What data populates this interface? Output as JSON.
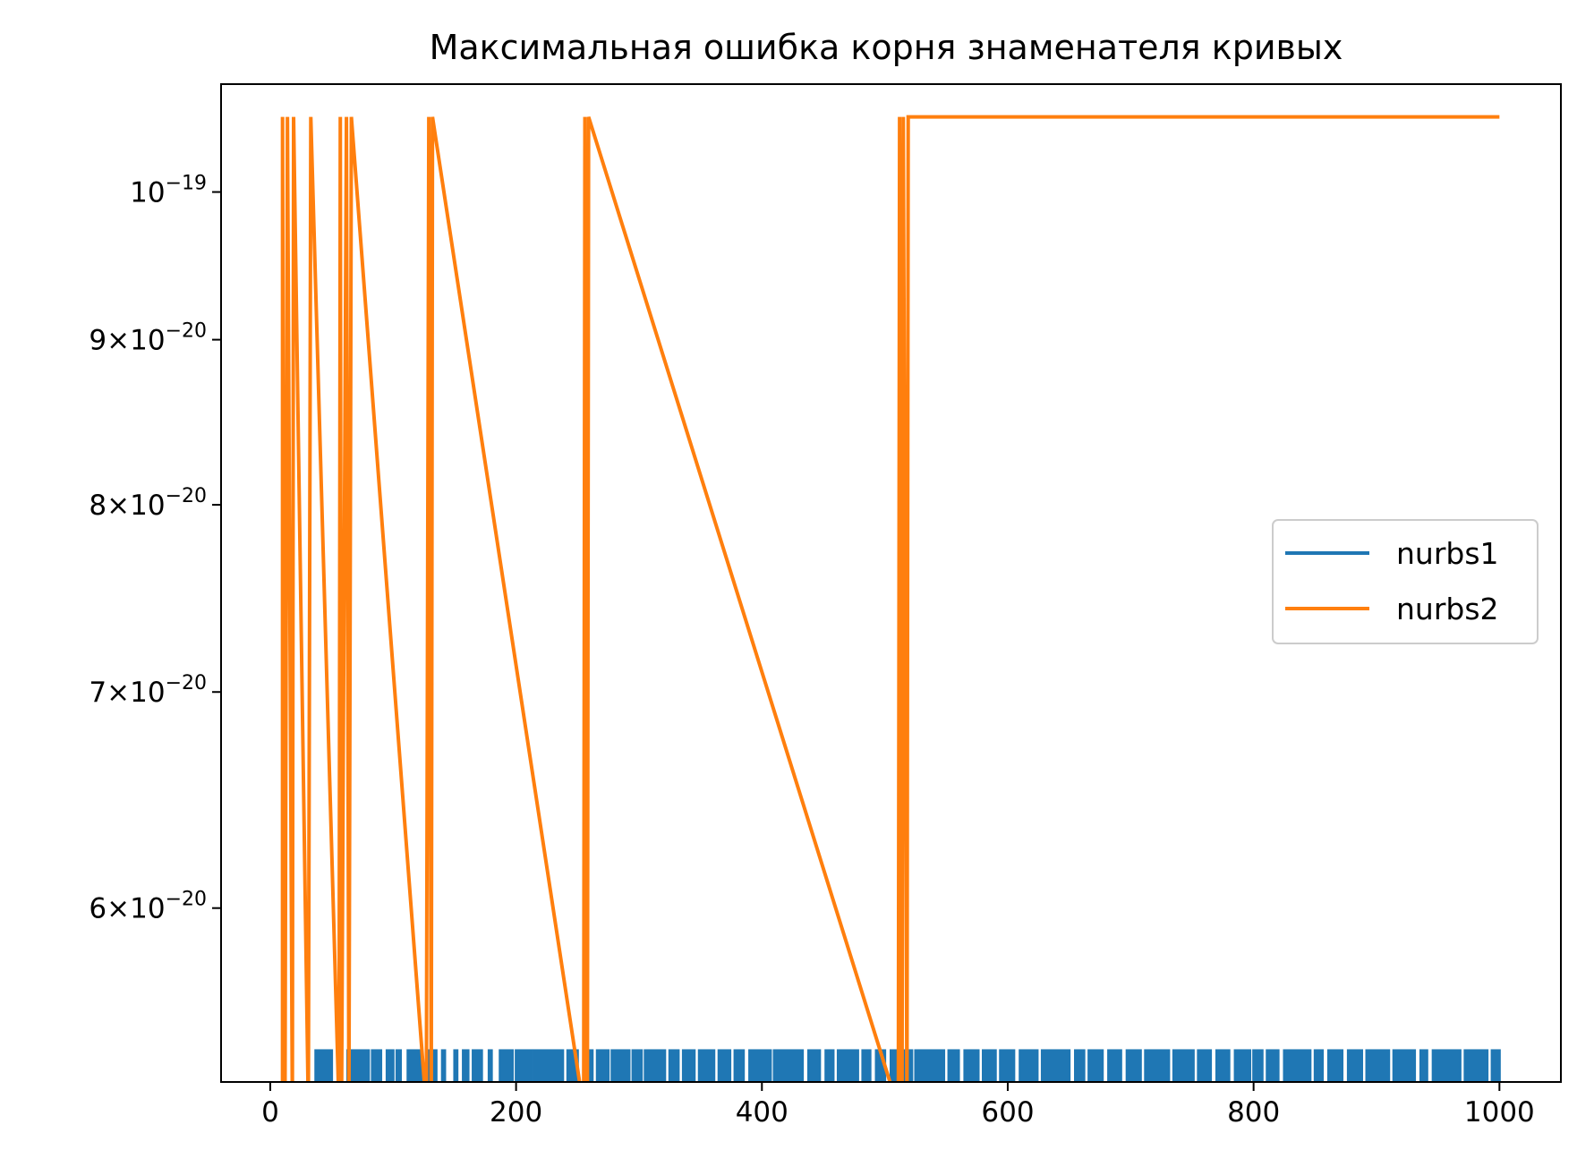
{
  "chart_data": {
    "type": "line",
    "title": "Максимальная ошибка корня знаменателя кривых",
    "xlabel": "",
    "ylabel": "",
    "yscale": "log",
    "xlim": [
      -40,
      1050
    ],
    "ylim": [
      5.3e-20,
      1.08e-19
    ],
    "grid": false,
    "legend_position": "center-right",
    "x_ticks": [
      {
        "value": 0,
        "label": "0"
      },
      {
        "value": 200,
        "label": "200"
      },
      {
        "value": 400,
        "label": "400"
      },
      {
        "value": 600,
        "label": "600"
      },
      {
        "value": 800,
        "label": "800"
      },
      {
        "value": 1000,
        "label": "1000"
      }
    ],
    "y_ticks": [
      {
        "value": 1e-19,
        "mantissa": "",
        "base": "10",
        "exponent": "−19"
      },
      {
        "value": 9e-20,
        "mantissa": "9",
        "base": "10",
        "exponent": "−20"
      },
      {
        "value": 8e-20,
        "mantissa": "8",
        "base": "10",
        "exponent": "−20"
      },
      {
        "value": 7e-20,
        "mantissa": "7",
        "base": "10",
        "exponent": "−20"
      },
      {
        "value": 6e-20,
        "mantissa": "6",
        "base": "10",
        "exponent": "−20"
      }
    ],
    "series": [
      {
        "name": "nurbs1",
        "color": "#1f77b4",
        "x_range": [
          1,
          1000
        ],
        "high_value": 5.42e-20,
        "low_value": 5.2e-20,
        "note_pattern": "rapid switching between low (below axis) and high values",
        "high_intervals": [
          [
            37,
            50
          ],
          [
            55,
            58
          ],
          [
            63,
            80
          ],
          [
            83,
            90
          ],
          [
            95,
            100
          ],
          [
            103,
            106
          ],
          [
            112,
            123
          ],
          [
            127,
            135
          ],
          [
            140,
            142
          ],
          [
            150,
            152
          ],
          [
            157,
            161
          ],
          [
            165,
            172
          ],
          [
            178,
            180
          ],
          [
            187,
            197
          ],
          [
            200,
            213
          ],
          [
            215,
            238
          ],
          [
            242,
            250
          ],
          [
            255,
            262
          ],
          [
            266,
            275
          ],
          [
            278,
            292
          ],
          [
            295,
            302
          ],
          [
            305,
            321
          ],
          [
            325,
            332
          ],
          [
            336,
            345
          ],
          [
            349,
            361
          ],
          [
            365,
            374
          ],
          [
            378,
            385
          ],
          [
            390,
            407
          ],
          [
            410,
            433
          ],
          [
            438,
            447
          ],
          [
            452,
            458
          ],
          [
            462,
            478
          ],
          [
            482,
            488
          ],
          [
            493,
            500
          ],
          [
            505,
            522
          ],
          [
            525,
            548
          ],
          [
            552,
            560
          ],
          [
            565,
            576
          ],
          [
            580,
            590
          ],
          [
            594,
            605
          ],
          [
            610,
            624
          ],
          [
            628,
            650
          ],
          [
            655,
            662
          ],
          [
            666,
            677
          ],
          [
            682,
            692
          ],
          [
            697,
            708
          ],
          [
            712,
            731
          ],
          [
            735,
            751
          ],
          [
            755,
            765
          ],
          [
            770,
            780
          ],
          [
            785,
            797
          ],
          [
            800,
            807
          ],
          [
            811,
            820
          ],
          [
            825,
            846
          ],
          [
            850,
            856
          ],
          [
            861,
            872
          ],
          [
            877,
            888
          ],
          [
            892,
            910
          ],
          [
            914,
            931
          ],
          [
            936,
            941
          ],
          [
            946,
            968
          ],
          [
            972,
            990
          ],
          [
            994,
            1000
          ]
        ]
      },
      {
        "name": "nurbs2",
        "color": "#ff7f0e",
        "high_value": 1.055e-19,
        "low_value": 5.2e-20,
        "steps": [
          [
            10,
            1.055e-19
          ],
          [
            12,
            5.2e-20
          ],
          [
            14,
            1.055e-19
          ],
          [
            18,
            5.2e-20
          ],
          [
            19,
            1.055e-19
          ],
          [
            31,
            5.2e-20
          ],
          [
            33,
            1.055e-19
          ],
          [
            56,
            5.2e-20
          ],
          [
            57,
            1.055e-19
          ],
          [
            58,
            5.2e-20
          ],
          [
            62,
            1.055e-19
          ],
          [
            64,
            5.2e-20
          ],
          [
            66,
            1.055e-19
          ],
          [
            127,
            5.2e-20
          ],
          [
            129,
            1.055e-19
          ],
          [
            131,
            5.2e-20
          ],
          [
            132,
            1.055e-19
          ],
          [
            255,
            5.2e-20
          ],
          [
            256,
            1.055e-19
          ],
          [
            258,
            5.2e-20
          ],
          [
            259,
            1.055e-19
          ],
          [
            511,
            5.2e-20
          ],
          [
            512,
            1.055e-19
          ],
          [
            514,
            5.2e-20
          ],
          [
            515,
            1.055e-19
          ],
          [
            518,
            5.2e-20
          ],
          [
            519,
            1.055e-19
          ],
          [
            1000,
            1.055e-19
          ]
        ]
      }
    ]
  }
}
